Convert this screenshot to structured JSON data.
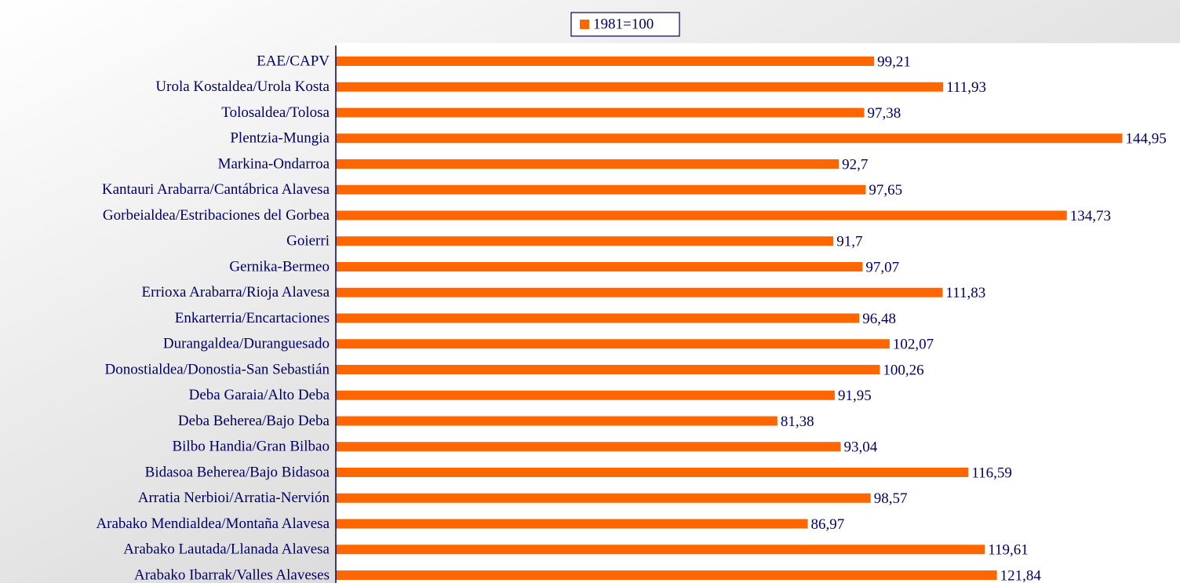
{
  "chart_data": {
    "type": "barh",
    "legend": "top",
    "series": [
      {
        "name": "1981=100",
        "color": "#ff6600",
        "values": [
          99.21,
          111.93,
          97.38,
          144.95,
          92.7,
          97.65,
          134.73,
          91.7,
          97.07,
          111.83,
          96.48,
          102.07,
          100.26,
          91.95,
          81.38,
          93.04,
          116.59,
          98.57,
          86.97,
          119.61,
          121.84
        ],
        "value_labels": [
          "99,21",
          "111,93",
          "97,38",
          "144,95",
          "92,7",
          "97,65",
          "134,73",
          "91,7",
          "97,07",
          "111,83",
          "96,48",
          "102,07",
          "100,26",
          "91,95",
          "81,38",
          "93,04",
          "116,59",
          "98,57",
          "86,97",
          "119,61",
          "121,84"
        ]
      }
    ],
    "categories": [
      "EAE/CAPV",
      "Urola Kostaldea/Urola Kosta",
      "Tolosaldea/Tolosa",
      "Plentzia-Mungia",
      "Markina-Ondarroa",
      "Kantauri Arabarra/Cantábrica Alavesa",
      "Gorbeialdea/Estribaciones del Gorbea",
      "Goierri",
      "Gernika-Bermeo",
      "Errioxa Arabarra/Rioja Alavesa",
      "Enkarterria/Encartaciones",
      "Durangaldea/Duranguesado",
      "Donostialdea/Donostia-San Sebastián",
      "Deba Garaia/Alto Deba",
      "Deba Beherea/Bajo Deba",
      "Bilbo Handia/Gran Bilbao",
      "Bidasoa Beherea/Bajo Bidasoa",
      "Arratia Nerbioi/Arratia-Nervión",
      "Arabako Mendialdea/Montaña Alavesa",
      "Arabako Lautada/Llanada Alavesa",
      "Arabako Ibarrak/Valles Alaveses"
    ],
    "xlim": [
      0,
      155
    ]
  }
}
